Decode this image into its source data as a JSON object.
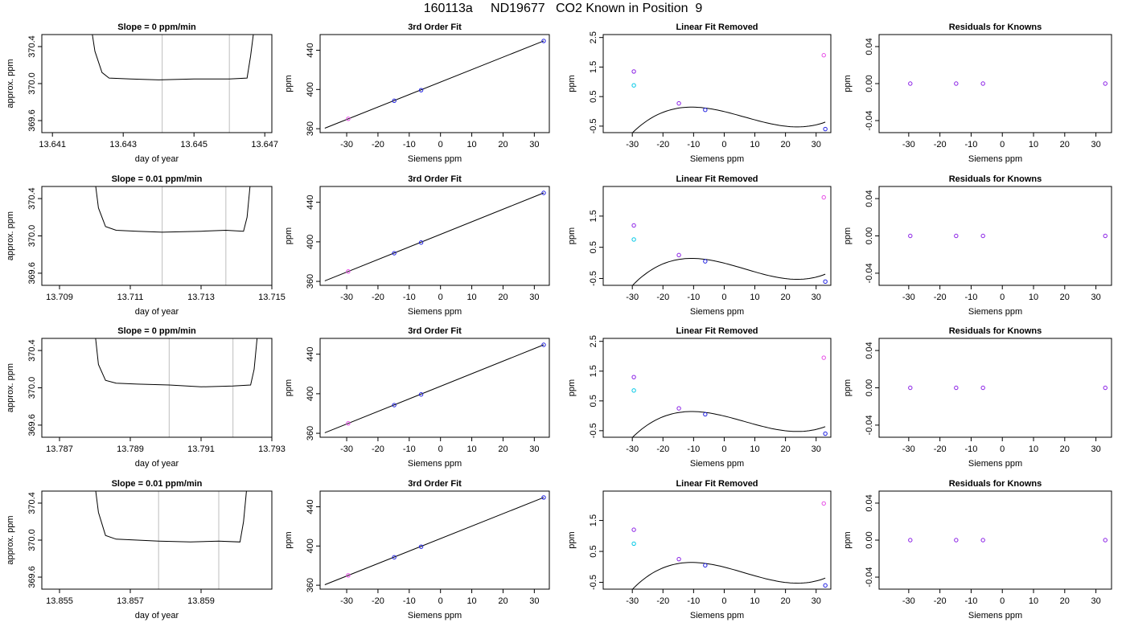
{
  "page_title": "160113a     ND19677   CO2 Known in Position  9",
  "colors": {
    "axis": "#000000",
    "curve": "#000000",
    "vline": "#c8c8c8",
    "blue": "#1f1fe0",
    "cyan": "#00c8e6",
    "magenta": "#e64ce6",
    "purple": "#8a1fe6",
    "red": "#d04040"
  },
  "chart_data": [
    {
      "type": "line",
      "row": 0,
      "col": 0,
      "title": "Slope =  0  ppm/min",
      "xlabel": "day of year",
      "ylabel": "approx. ppm",
      "xlim": [
        13.6407,
        13.6472
      ],
      "ylim": [
        369.47,
        370.53
      ],
      "xticks": [
        "13.641",
        "13.643",
        "13.645",
        "13.647"
      ],
      "xtick_values": [
        13.641,
        13.643,
        13.645,
        13.647
      ],
      "yticks": [
        "369.6",
        "370.0",
        "370.4"
      ],
      "ytick_values": [
        369.6,
        370.0,
        370.4
      ],
      "vlines": [
        13.6441,
        13.646
      ],
      "series": [
        {
          "x": [
            13.6421,
            13.6422,
            13.6424,
            13.6426,
            13.6432,
            13.644,
            13.645,
            13.646,
            13.6465,
            13.6466,
            13.6467
          ],
          "y": [
            370.6,
            370.35,
            370.12,
            370.06,
            370.05,
            370.04,
            370.05,
            370.05,
            370.06,
            370.3,
            370.6
          ]
        }
      ]
    },
    {
      "type": "line",
      "row": 1,
      "col": 0,
      "title": "Slope =  0.01  ppm/min",
      "xlabel": "day of year",
      "ylabel": "approx. ppm",
      "xlim": [
        13.7085,
        13.715
      ],
      "ylim": [
        369.47,
        370.53
      ],
      "xticks": [
        "13.709",
        "13.711",
        "13.713",
        "13.715"
      ],
      "xtick_values": [
        13.709,
        13.711,
        13.713,
        13.715
      ],
      "yticks": [
        "369.6",
        "370.0",
        "370.4"
      ],
      "ytick_values": [
        369.6,
        370.0,
        370.4
      ],
      "vlines": [
        13.7119,
        13.7137
      ],
      "series": [
        {
          "x": [
            13.71,
            13.7101,
            13.7103,
            13.7106,
            13.7112,
            13.7119,
            13.713,
            13.7137,
            13.7142,
            13.7143,
            13.7144
          ],
          "y": [
            370.6,
            370.3,
            370.1,
            370.06,
            370.05,
            370.04,
            370.05,
            370.06,
            370.05,
            370.2,
            370.6
          ]
        }
      ]
    },
    {
      "type": "line",
      "row": 2,
      "col": 0,
      "title": "Slope =  0  ppm/min",
      "xlabel": "day of year",
      "ylabel": "approx. ppm",
      "xlim": [
        13.7865,
        13.793
      ],
      "ylim": [
        369.47,
        370.53
      ],
      "xticks": [
        "13.787",
        "13.789",
        "13.791",
        "13.793"
      ],
      "xtick_values": [
        13.787,
        13.789,
        13.791,
        13.793
      ],
      "yticks": [
        "369.6",
        "370.0",
        "370.4"
      ],
      "ytick_values": [
        369.6,
        370.0,
        370.4
      ],
      "vlines": [
        13.7901,
        13.7919
      ],
      "series": [
        {
          "x": [
            13.788,
            13.7881,
            13.7883,
            13.7886,
            13.7892,
            13.7901,
            13.791,
            13.7919,
            13.7924,
            13.7925,
            13.7926
          ],
          "y": [
            370.6,
            370.25,
            370.08,
            370.05,
            370.04,
            370.03,
            370.01,
            370.02,
            370.03,
            370.2,
            370.6
          ]
        }
      ]
    },
    {
      "type": "line",
      "row": 3,
      "col": 0,
      "title": "Slope =  0.01  ppm/min",
      "xlabel": "day of year",
      "ylabel": "approx. ppm",
      "xlim": [
        13.8545,
        13.861
      ],
      "ylim": [
        369.47,
        370.53
      ],
      "xticks": [
        "13.855",
        "13.857",
        "13.859"
      ],
      "xtick_values": [
        13.855,
        13.857,
        13.859
      ],
      "yticks": [
        "369.6",
        "370.0",
        "370.4"
      ],
      "ytick_values": [
        369.6,
        370.0,
        370.4
      ],
      "vlines": [
        13.8578,
        13.8595
      ],
      "series": [
        {
          "x": [
            13.856,
            13.8561,
            13.8563,
            13.8566,
            13.8572,
            13.8578,
            13.8587,
            13.8595,
            13.8601,
            13.8602,
            13.8603
          ],
          "y": [
            370.6,
            370.3,
            370.05,
            370.01,
            370.0,
            369.99,
            369.98,
            369.99,
            369.98,
            370.2,
            370.6
          ]
        }
      ]
    },
    {
      "type": "scatter",
      "row": 0,
      "col": 1,
      "title": "3rd Order Fit",
      "xlabel": "Siemens ppm",
      "ylabel": "ppm",
      "xlim": [
        -38.5,
        34.8
      ],
      "ylim": [
        356,
        456
      ],
      "xticks": [
        "-30",
        "-20",
        "-10",
        "0",
        "10",
        "20",
        "30"
      ],
      "xtick_values": [
        -30,
        -20,
        -10,
        0,
        10,
        20,
        30
      ],
      "yticks": [
        "360",
        "400",
        "440"
      ],
      "ytick_values": [
        360,
        400,
        440
      ],
      "fit_line": {
        "x": [
          -37,
          33
        ],
        "y": [
          360.5,
          449.5
        ]
      },
      "points": {
        "x": [
          -29.5,
          -14.8,
          -6.2,
          33
        ],
        "y": [
          370.1,
          388.5,
          399.3,
          449.5
        ],
        "colors": [
          "magenta",
          "blue",
          "blue",
          "blue"
        ]
      }
    },
    {
      "type": "scatter",
      "row": 1,
      "col": 1,
      "title": "3rd Order Fit",
      "xlabel": "Siemens ppm",
      "ylabel": "ppm",
      "xlim": [
        -38.5,
        34.8
      ],
      "ylim": [
        356,
        456
      ],
      "xticks": [
        "-30",
        "-20",
        "-10",
        "0",
        "10",
        "20",
        "30"
      ],
      "xtick_values": [
        -30,
        -20,
        -10,
        0,
        10,
        20,
        30
      ],
      "yticks": [
        "360",
        "400",
        "440"
      ],
      "ytick_values": [
        360,
        400,
        440
      ],
      "fit_line": {
        "x": [
          -37,
          33
        ],
        "y": [
          360.5,
          449.5
        ]
      },
      "points": {
        "x": [
          -29.5,
          -14.8,
          -6.2,
          33
        ],
        "y": [
          370.1,
          388.5,
          399.3,
          449.5
        ],
        "colors": [
          "magenta",
          "blue",
          "blue",
          "blue"
        ]
      }
    },
    {
      "type": "scatter",
      "row": 2,
      "col": 1,
      "title": "3rd Order Fit",
      "xlabel": "Siemens ppm",
      "ylabel": "ppm",
      "xlim": [
        -38.5,
        34.8
      ],
      "ylim": [
        356,
        456
      ],
      "xticks": [
        "-30",
        "-20",
        "-10",
        "0",
        "10",
        "20",
        "30"
      ],
      "xtick_values": [
        -30,
        -20,
        -10,
        0,
        10,
        20,
        30
      ],
      "yticks": [
        "360",
        "400",
        "440"
      ],
      "ytick_values": [
        360,
        400,
        440
      ],
      "fit_line": {
        "x": [
          -37,
          33
        ],
        "y": [
          360.5,
          449.5
        ]
      },
      "points": {
        "x": [
          -29.5,
          -14.8,
          -6.2,
          33
        ],
        "y": [
          370.1,
          388.5,
          399.3,
          449.5
        ],
        "colors": [
          "magenta",
          "blue",
          "blue",
          "blue"
        ]
      }
    },
    {
      "type": "scatter",
      "row": 3,
      "col": 1,
      "title": "3rd Order Fit",
      "xlabel": "Siemens ppm",
      "ylabel": "ppm",
      "xlim": [
        -38.5,
        34.8
      ],
      "ylim": [
        356,
        456
      ],
      "xticks": [
        "-30",
        "-20",
        "-10",
        "0",
        "10",
        "20",
        "30"
      ],
      "xtick_values": [
        -30,
        -20,
        -10,
        0,
        10,
        20,
        30
      ],
      "yticks": [
        "360",
        "400",
        "440"
      ],
      "ytick_values": [
        360,
        400,
        440
      ],
      "fit_line": {
        "x": [
          -37,
          33
        ],
        "y": [
          360.5,
          449.5
        ]
      },
      "points": {
        "x": [
          -29.5,
          -14.8,
          -6.2,
          33
        ],
        "y": [
          370.1,
          388.5,
          399.3,
          449.5
        ],
        "colors": [
          "magenta",
          "blue",
          "blue",
          "blue"
        ]
      }
    },
    {
      "type": "scatter",
      "row": 0,
      "col": 2,
      "title": "Linear Fit Removed",
      "xlabel": "Siemens ppm",
      "ylabel": "ppm",
      "xlim": [
        -39.5,
        34.8
      ],
      "ylim": [
        -0.72,
        2.6
      ],
      "xticks": [
        "-30",
        "-20",
        "-10",
        "0",
        "10",
        "20",
        "30"
      ],
      "xtick_values": [
        -30,
        -20,
        -10,
        0,
        10,
        20,
        30
      ],
      "yticks": [
        "-0.5",
        "0.5",
        "1.5",
        "2.5"
      ],
      "ytick_values": [
        -0.5,
        0.5,
        1.5,
        2.5
      ],
      "cubic": {
        "x0": -37.5,
        "x1": 33,
        "c": [
          -0.008,
          -0.0248,
          -0.00065,
          3.26e-05
        ]
      },
      "points": {
        "x": [
          -29.5,
          -29.5,
          -14.8,
          -6.2,
          32.5,
          33
        ],
        "y": [
          1.35,
          0.88,
          0.27,
          0.05,
          1.9,
          -0.6
        ],
        "colors": [
          "purple",
          "cyan",
          "purple",
          "blue",
          "magenta",
          "blue"
        ]
      }
    },
    {
      "type": "scatter",
      "row": 1,
      "col": 2,
      "title": "Linear Fit Removed",
      "xlabel": "Siemens ppm",
      "ylabel": "ppm",
      "xlim": [
        -39.5,
        34.8
      ],
      "ylim": [
        -0.72,
        2.45
      ],
      "xticks": [
        "-30",
        "-20",
        "-10",
        "0",
        "10",
        "20",
        "30"
      ],
      "xtick_values": [
        -30,
        -20,
        -10,
        0,
        10,
        20,
        30
      ],
      "yticks": [
        "-0.5",
        "0.5",
        "1.5"
      ],
      "ytick_values": [
        -0.5,
        0.5,
        1.5
      ],
      "cubic": {
        "x0": -37.5,
        "x1": 33,
        "c": [
          -0.008,
          -0.0248,
          -0.00065,
          3.26e-05
        ]
      },
      "points": {
        "x": [
          -29.5,
          -29.5,
          -14.8,
          -6.2,
          32.5,
          33
        ],
        "y": [
          1.2,
          0.75,
          0.25,
          0.05,
          2.1,
          -0.6
        ],
        "colors": [
          "purple",
          "cyan",
          "purple",
          "blue",
          "magenta",
          "blue"
        ]
      }
    },
    {
      "type": "scatter",
      "row": 2,
      "col": 2,
      "title": "Linear Fit Removed",
      "xlabel": "Siemens ppm",
      "ylabel": "ppm",
      "xlim": [
        -39.5,
        34.8
      ],
      "ylim": [
        -0.72,
        2.6
      ],
      "xticks": [
        "-30",
        "-20",
        "-10",
        "0",
        "10",
        "20",
        "30"
      ],
      "xtick_values": [
        -30,
        -20,
        -10,
        0,
        10,
        20,
        30
      ],
      "yticks": [
        "-0.5",
        "0.5",
        "1.5",
        "2.5"
      ],
      "ytick_values": [
        -0.5,
        0.5,
        1.5,
        2.5
      ],
      "cubic": {
        "x0": -37.5,
        "x1": 33,
        "c": [
          -0.008,
          -0.0248,
          -0.00065,
          3.26e-05
        ]
      },
      "points": {
        "x": [
          -29.5,
          -29.5,
          -14.8,
          -6.2,
          32.5,
          33
        ],
        "y": [
          1.3,
          0.85,
          0.25,
          0.05,
          1.95,
          -0.6
        ],
        "colors": [
          "purple",
          "cyan",
          "purple",
          "blue",
          "magenta",
          "blue"
        ]
      }
    },
    {
      "type": "scatter",
      "row": 3,
      "col": 2,
      "title": "Linear Fit Removed",
      "xlabel": "Siemens ppm",
      "ylabel": "ppm",
      "xlim": [
        -39.5,
        34.8
      ],
      "ylim": [
        -0.72,
        2.45
      ],
      "xticks": [
        "-30",
        "-20",
        "-10",
        "0",
        "10",
        "20",
        "30"
      ],
      "xtick_values": [
        -30,
        -20,
        -10,
        0,
        10,
        20,
        30
      ],
      "yticks": [
        "-0.5",
        "0.5",
        "1.5"
      ],
      "ytick_values": [
        -0.5,
        0.5,
        1.5
      ],
      "cubic": {
        "x0": -37.5,
        "x1": 33,
        "c": [
          -0.008,
          -0.0248,
          -0.00065,
          3.26e-05
        ]
      },
      "points": {
        "x": [
          -29.5,
          -29.5,
          -14.8,
          -6.2,
          32.5,
          33
        ],
        "y": [
          1.2,
          0.75,
          0.25,
          0.05,
          2.05,
          -0.6
        ],
        "colors": [
          "purple",
          "cyan",
          "purple",
          "blue",
          "magenta",
          "blue"
        ]
      }
    },
    {
      "type": "scatter",
      "row": 0,
      "col": 3,
      "title": "Residuals for Knowns",
      "xlabel": "Siemens ppm",
      "ylabel": "ppm",
      "xlim": [
        -39.5,
        35
      ],
      "ylim": [
        -0.053,
        0.053
      ],
      "xticks": [
        "-30",
        "-20",
        "-10",
        "0",
        "10",
        "20",
        "30"
      ],
      "xtick_values": [
        -30,
        -20,
        -10,
        0,
        10,
        20,
        30
      ],
      "yticks": [
        "-0.04",
        "0.00",
        "0.04"
      ],
      "ytick_values": [
        -0.04,
        0.0,
        0.04
      ],
      "points": {
        "x": [
          -29.5,
          -14.8,
          -6.2,
          33
        ],
        "y": [
          0,
          0,
          0,
          0
        ],
        "colors": [
          "purple",
          "purple",
          "purple",
          "purple"
        ]
      }
    },
    {
      "type": "scatter",
      "row": 1,
      "col": 3,
      "title": "Residuals for Knowns",
      "xlabel": "Siemens ppm",
      "ylabel": "ppm",
      "xlim": [
        -39.5,
        35
      ],
      "ylim": [
        -0.053,
        0.053
      ],
      "xticks": [
        "-30",
        "-20",
        "-10",
        "0",
        "10",
        "20",
        "30"
      ],
      "xtick_values": [
        -30,
        -20,
        -10,
        0,
        10,
        20,
        30
      ],
      "yticks": [
        "-0.04",
        "0.00",
        "0.04"
      ],
      "ytick_values": [
        -0.04,
        0.0,
        0.04
      ],
      "points": {
        "x": [
          -29.5,
          -14.8,
          -6.2,
          33
        ],
        "y": [
          0,
          0,
          0,
          0
        ],
        "colors": [
          "purple",
          "purple",
          "purple",
          "purple"
        ]
      }
    },
    {
      "type": "scatter",
      "row": 2,
      "col": 3,
      "title": "Residuals for Knowns",
      "xlabel": "Siemens ppm",
      "ylabel": "ppm",
      "xlim": [
        -39.5,
        35
      ],
      "ylim": [
        -0.053,
        0.053
      ],
      "xticks": [
        "-30",
        "-20",
        "-10",
        "0",
        "10",
        "20",
        "30"
      ],
      "xtick_values": [
        -30,
        -20,
        -10,
        0,
        10,
        20,
        30
      ],
      "yticks": [
        "-0.04",
        "0.00",
        "0.04"
      ],
      "ytick_values": [
        -0.04,
        0.0,
        0.04
      ],
      "points": {
        "x": [
          -29.5,
          -14.8,
          -6.2,
          33
        ],
        "y": [
          0,
          0,
          0,
          0
        ],
        "colors": [
          "purple",
          "purple",
          "purple",
          "purple"
        ]
      }
    },
    {
      "type": "scatter",
      "row": 3,
      "col": 3,
      "title": "Residuals for Knowns",
      "xlabel": "Siemens ppm",
      "ylabel": "ppm",
      "xlim": [
        -39.5,
        35
      ],
      "ylim": [
        -0.053,
        0.053
      ],
      "xticks": [
        "-30",
        "-20",
        "-10",
        "0",
        "10",
        "20",
        "30"
      ],
      "xtick_values": [
        -30,
        -20,
        -10,
        0,
        10,
        20,
        30
      ],
      "yticks": [
        "-0.04",
        "0.00",
        "0.04"
      ],
      "ytick_values": [
        -0.04,
        0.0,
        0.04
      ],
      "points": {
        "x": [
          -29.5,
          -14.8,
          -6.2,
          33
        ],
        "y": [
          0,
          0,
          0,
          0
        ],
        "colors": [
          "purple",
          "purple",
          "purple",
          "purple"
        ]
      }
    }
  ]
}
